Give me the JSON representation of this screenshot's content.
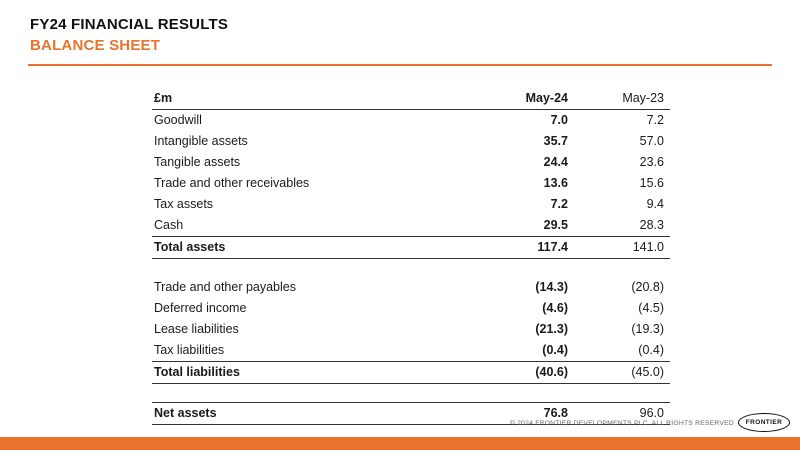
{
  "header": {
    "title": "FY24 FINANCIAL RESULTS",
    "subtitle": "BALANCE SHEET"
  },
  "colors": {
    "accent": "#E8732C",
    "text": "#1a1a1a"
  },
  "table": {
    "columns": [
      "£m",
      "May-24",
      "May-23"
    ],
    "rows": [
      {
        "label": "Goodwill",
        "may24": "7.0",
        "may23": "7.2"
      },
      {
        "label": "Intangible assets",
        "may24": "35.7",
        "may23": "57.0"
      },
      {
        "label": "Tangible assets",
        "may24": "24.4",
        "may23": "23.6"
      },
      {
        "label": "Trade and other receivables",
        "may24": "13.6",
        "may23": "15.6"
      },
      {
        "label": "Tax assets",
        "may24": "7.2",
        "may23": "9.4"
      },
      {
        "label": "Cash",
        "may24": "29.5",
        "may23": "28.3"
      },
      {
        "label": "Total assets",
        "may24": "117.4",
        "may23": "141.0"
      },
      {
        "label": "Trade and other payables",
        "may24": "(14.3)",
        "may23": "(20.8)"
      },
      {
        "label": "Deferred income",
        "may24": "(4.6)",
        "may23": "(4.5)"
      },
      {
        "label": "Lease liabilities",
        "may24": "(21.3)",
        "may23": "(19.3)"
      },
      {
        "label": "Tax liabilities",
        "may24": "(0.4)",
        "may23": "(0.4)"
      },
      {
        "label": "Total liabilities",
        "may24": "(40.6)",
        "may23": "(45.0)"
      },
      {
        "label": "Net assets",
        "may24": "76.8",
        "may23": "96.0"
      }
    ]
  },
  "footer": {
    "copyright": "© 2024 FRONTIER DEVELOPMENTS PLC. ALL RIGHTS RESERVED",
    "logo_text": "FRONTIER"
  }
}
